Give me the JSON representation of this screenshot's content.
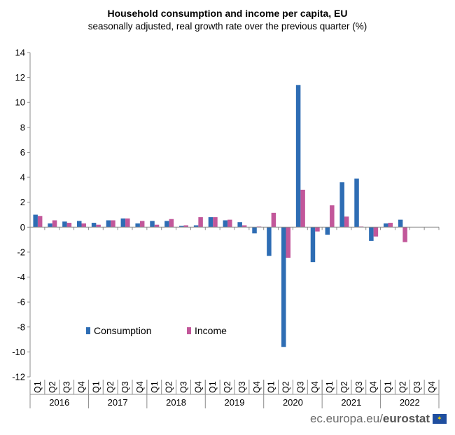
{
  "chart_data": {
    "type": "bar",
    "title": "Household consumption and income per capita, EU",
    "subtitle": "seasonally adjusted, real growth rate over the previous quarter (%)",
    "ylim": [
      -12,
      14
    ],
    "y_ticks": [
      -12,
      -10,
      -8,
      -6,
      -4,
      -2,
      0,
      2,
      4,
      6,
      8,
      10,
      12,
      14
    ],
    "categories": [
      "Q1",
      "Q2",
      "Q3",
      "Q4",
      "Q1",
      "Q2",
      "Q3",
      "Q4",
      "Q1",
      "Q2",
      "Q3",
      "Q4",
      "Q1",
      "Q2",
      "Q3",
      "Q4",
      "Q1",
      "Q2",
      "Q3",
      "Q4",
      "Q1",
      "Q2",
      "Q3",
      "Q4",
      "Q1",
      "Q2",
      "Q3",
      "Q4"
    ],
    "years": [
      "2016",
      "2017",
      "2018",
      "2019",
      "2020",
      "2021",
      "2022"
    ],
    "series": [
      {
        "name": "Consumption",
        "color": "#2e6db4",
        "values": [
          1.0,
          0.3,
          0.45,
          0.5,
          0.35,
          0.55,
          0.7,
          0.3,
          0.5,
          0.5,
          0.1,
          0.15,
          0.8,
          0.55,
          0.4,
          -0.5,
          -2.3,
          -9.6,
          11.4,
          -2.8,
          -0.6,
          3.6,
          3.9,
          -1.1,
          0.3,
          0.6,
          null,
          null
        ]
      },
      {
        "name": "Income",
        "color": "#c2579a",
        "values": [
          0.9,
          0.55,
          0.35,
          0.3,
          0.2,
          0.55,
          0.7,
          0.5,
          0.2,
          0.65,
          0.15,
          0.8,
          0.8,
          0.6,
          0.15,
          0.05,
          1.15,
          -2.45,
          3.0,
          -0.35,
          1.75,
          0.85,
          0.05,
          -0.75,
          0.35,
          -1.2,
          null,
          null
        ]
      }
    ],
    "legend": "bottom-left inside plot"
  },
  "footer": {
    "site": "ec.europa.eu/",
    "brand": "eurostat"
  }
}
